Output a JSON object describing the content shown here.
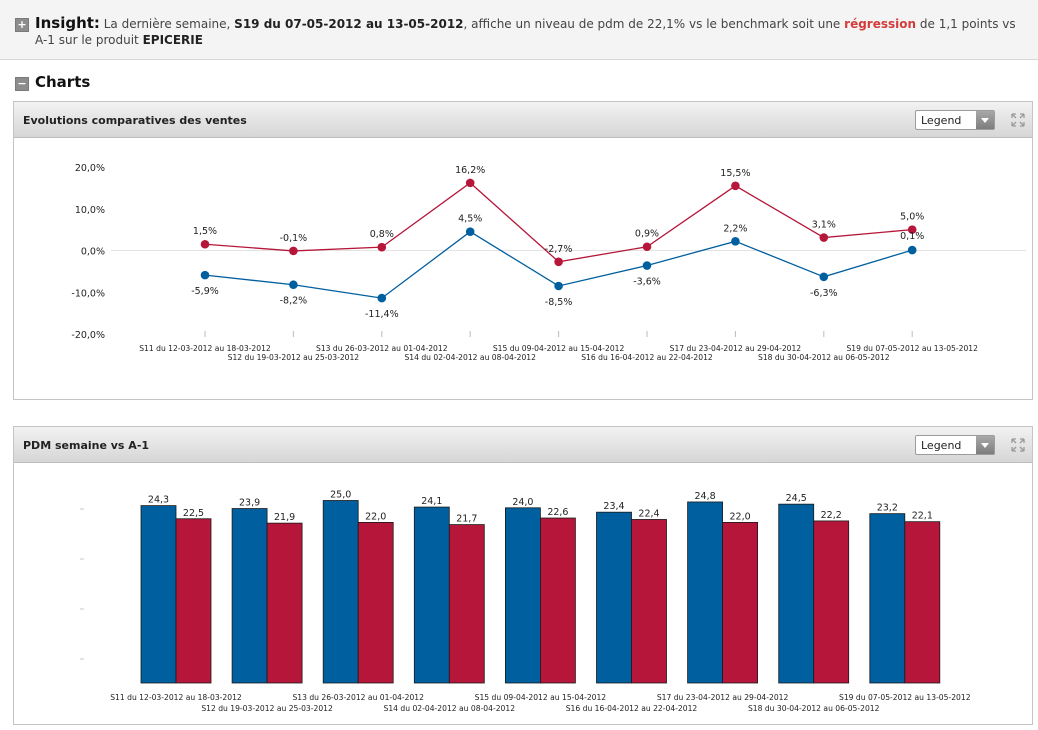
{
  "insight": {
    "toggle": "+",
    "label": "Insight:",
    "text_1": "La dernière semaine,",
    "week": "S19 du 07-05-2012 au 13-05-2012",
    "text_2": ", affiche un niveau de pdm de 22,1% vs le benchmark soit une",
    "trend": "régression",
    "text_3": "de 1,1 points vs A-1 sur le produit",
    "product": "EPICERIE"
  },
  "charts_section": {
    "toggle": "−",
    "title": "Charts"
  },
  "colors": {
    "blue": "#005f9e",
    "red": "#b5163a",
    "negative_text": "#d23c3c"
  },
  "icons": {
    "expand": "expand-arrows-icon",
    "dropdown": "chevron-down-icon"
  },
  "panels": [
    {
      "title": "Evolutions comparatives des ventes",
      "legend_label": "Legend"
    },
    {
      "title": "PDM semaine vs A-1",
      "legend_label": "Legend"
    }
  ],
  "chart_data": [
    {
      "type": "line",
      "categories": [
        "S11 du 12-03-2012 au 18-03-2012",
        "S12 du 19-03-2012 au 25-03-2012",
        "S13 du 26-03-2012 au 01-04-2012",
        "S14 du 02-04-2012 au 08-04-2012",
        "S15 du 09-04-2012 au 15-04-2012",
        "S16 du 16-04-2012 au 22-04-2012",
        "S17 du 23-04-2012 au 29-04-2012",
        "S18 du 30-04-2012 au 06-05-2012",
        "S19 du 07-05-2012 au 13-05-2012"
      ],
      "series": [
        {
          "color": "#b5163a",
          "values": [
            1.5,
            -0.1,
            0.8,
            16.2,
            -2.7,
            0.9,
            15.5,
            3.1,
            5.0
          ],
          "labels": [
            "1,5%",
            "-0,1%",
            "0,8%",
            "16,2%",
            "-2,7%",
            "0,9%",
            "15,5%",
            "3,1%",
            "5,0%"
          ]
        },
        {
          "color": "#005f9e",
          "values": [
            -5.9,
            -8.2,
            -11.4,
            4.5,
            -8.5,
            -3.6,
            2.2,
            -6.3,
            0.1
          ],
          "labels": [
            "-5,9%",
            "-8,2%",
            "-11,4%",
            "4,5%",
            "-8,5%",
            "-3,6%",
            "2,2%",
            "-6,3%",
            "0,1%"
          ]
        }
      ],
      "yticks": [
        "20,0%",
        "10,0%",
        "0,0%",
        "-10,0%",
        "-20,0%"
      ],
      "ytick_values": [
        20,
        10,
        0,
        -10,
        -20
      ],
      "ylim": [
        -20,
        20
      ],
      "grid": false,
      "legend": "dropdown"
    },
    {
      "type": "bar",
      "categories": [
        "S11 du 12-03-2012 au 18-03-2012",
        "S12 du 19-03-2012 au 25-03-2012",
        "S13 du 26-03-2012 au 01-04-2012",
        "S14 du 02-04-2012 au 08-04-2012",
        "S15 du 09-04-2012 au 15-04-2012",
        "S16 du 16-04-2012 au 22-04-2012",
        "S17 du 23-04-2012 au 29-04-2012",
        "S18 du 30-04-2012 au 06-05-2012",
        "S19 du 07-05-2012 au 13-05-2012"
      ],
      "series": [
        {
          "color": "#005f9e",
          "values": [
            24.3,
            23.9,
            25.0,
            24.1,
            24.0,
            23.4,
            24.8,
            24.5,
            23.2
          ],
          "labels": [
            "24,3",
            "23,9",
            "25,0",
            "24,1",
            "24,0",
            "23,4",
            "24,8",
            "24,5",
            "23,2"
          ]
        },
        {
          "color": "#b5163a",
          "values": [
            22.5,
            21.9,
            22.0,
            21.7,
            22.6,
            22.4,
            22.0,
            22.2,
            22.1
          ],
          "labels": [
            "22,5",
            "21,9",
            "22,0",
            "21,7",
            "22,6",
            "22,4",
            "22,0",
            "22,2",
            "22,1"
          ]
        }
      ],
      "ylim": [
        0,
        26
      ],
      "grid": false,
      "legend": "dropdown"
    }
  ]
}
